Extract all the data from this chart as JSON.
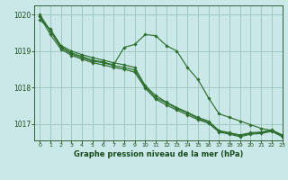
{
  "title": "Graphe pression niveau de la mer (hPa)",
  "bg_color": "#cbe8e8",
  "plot_bg_color": "#cbe8e8",
  "line_color": "#2d6e2d",
  "grid_color": "#a0c8c0",
  "text_color": "#1a4a1a",
  "xlim": [
    -0.5,
    23
  ],
  "ylim": [
    1016.55,
    1020.25
  ],
  "yticks": [
    1017,
    1018,
    1019,
    1020
  ],
  "xticks": [
    0,
    1,
    2,
    3,
    4,
    5,
    6,
    7,
    8,
    9,
    10,
    11,
    12,
    13,
    14,
    15,
    16,
    17,
    18,
    19,
    20,
    21,
    22,
    23
  ],
  "series": [
    [
      1019.85,
      1019.6,
      1019.15,
      1019.0,
      1018.9,
      1018.82,
      1018.75,
      1018.68,
      1018.62,
      1018.55,
      1018.05,
      1017.78,
      1017.6,
      1017.45,
      1017.32,
      1017.18,
      1017.08,
      1016.82,
      1016.76,
      1016.7,
      1016.76,
      1016.78,
      1016.84,
      1016.7
    ],
    [
      1019.95,
      1019.55,
      1019.1,
      1018.92,
      1018.82,
      1018.72,
      1018.68,
      1018.6,
      1018.55,
      1018.48,
      1018.02,
      1017.72,
      1017.58,
      1017.42,
      1017.3,
      1017.15,
      1017.05,
      1016.8,
      1016.74,
      1016.68,
      1016.74,
      1016.76,
      1016.82,
      1016.68
    ],
    [
      1019.95,
      1019.45,
      1019.05,
      1018.88,
      1018.78,
      1018.68,
      1018.62,
      1018.55,
      1018.5,
      1018.42,
      1017.98,
      1017.68,
      1017.52,
      1017.38,
      1017.25,
      1017.12,
      1017.02,
      1016.78,
      1016.72,
      1016.65,
      1016.72,
      1016.74,
      1016.8,
      1016.65
    ],
    [
      1020.0,
      1019.55,
      1019.12,
      1018.95,
      1018.85,
      1018.75,
      1018.7,
      1018.62,
      1019.1,
      1019.18,
      1019.45,
      1019.42,
      1019.15,
      1019.0,
      1018.55,
      1018.22,
      1017.72,
      1017.28,
      1017.18,
      1017.08,
      1016.98,
      1016.88,
      1016.82,
      1016.68
    ]
  ]
}
